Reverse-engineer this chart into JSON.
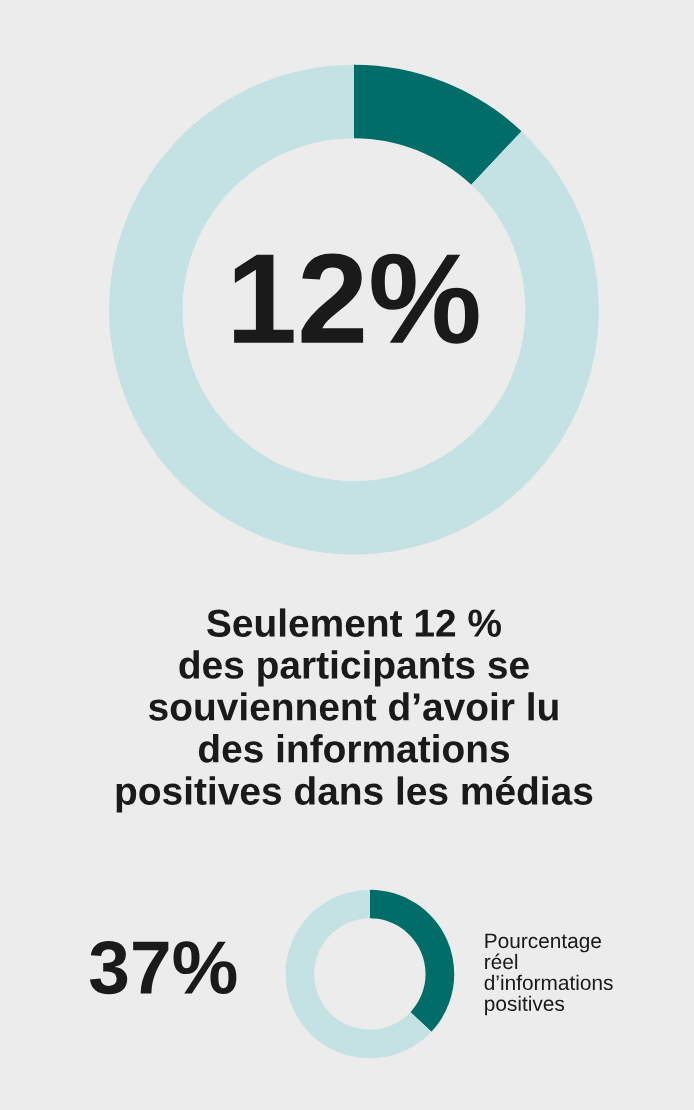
{
  "chart_data": [
    {
      "type": "donut",
      "categories": [
        null,
        null
      ],
      "values": [
        12,
        88
      ],
      "colors": [
        "#006d68",
        "#c4e2e3"
      ],
      "value_labels": [
        "12%",
        null
      ],
      "annotations": [
        "Seulement 12 %\ndes participants se\nsouviennent d’avoir lu\ndes informations\npositives dans les médias"
      ]
    },
    {
      "type": "donut",
      "categories": [
        null,
        null
      ],
      "values": [
        37,
        63
      ],
      "colors": [
        "#006d68",
        "#c4e2e3"
      ],
      "annotations": [
        "37%",
        "Pourcentage\nréel\nd’informations\npositives"
      ]
    }
  ]
}
